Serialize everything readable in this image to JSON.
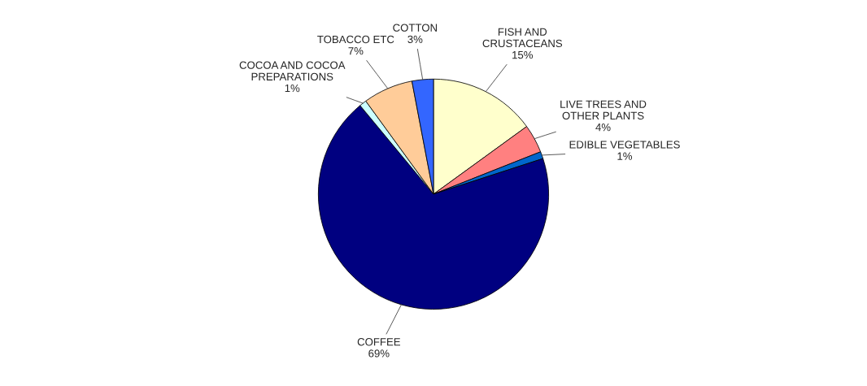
{
  "chart_data": {
    "type": "pie",
    "categories": [
      "FISH AND\nCRUSTACEANS",
      "LIVE TREES AND\nOTHER PLANTS",
      "EDIBLE VEGETABLES",
      "COFFEE",
      "COCOA AND COCOA\nPREPARATIONS",
      "TOBACCO ETC",
      "COTTON"
    ],
    "values": [
      15,
      4,
      1,
      69,
      1,
      7,
      3
    ],
    "value_labels": [
      "15%",
      "4%",
      "1%",
      "69%",
      "1%",
      "7%",
      "3%"
    ],
    "colors": [
      "#ffffcc",
      "#ff8080",
      "#0066cc",
      "#000080",
      "#ccffff",
      "#ffcc99",
      "#3366ff"
    ],
    "legend": false
  }
}
